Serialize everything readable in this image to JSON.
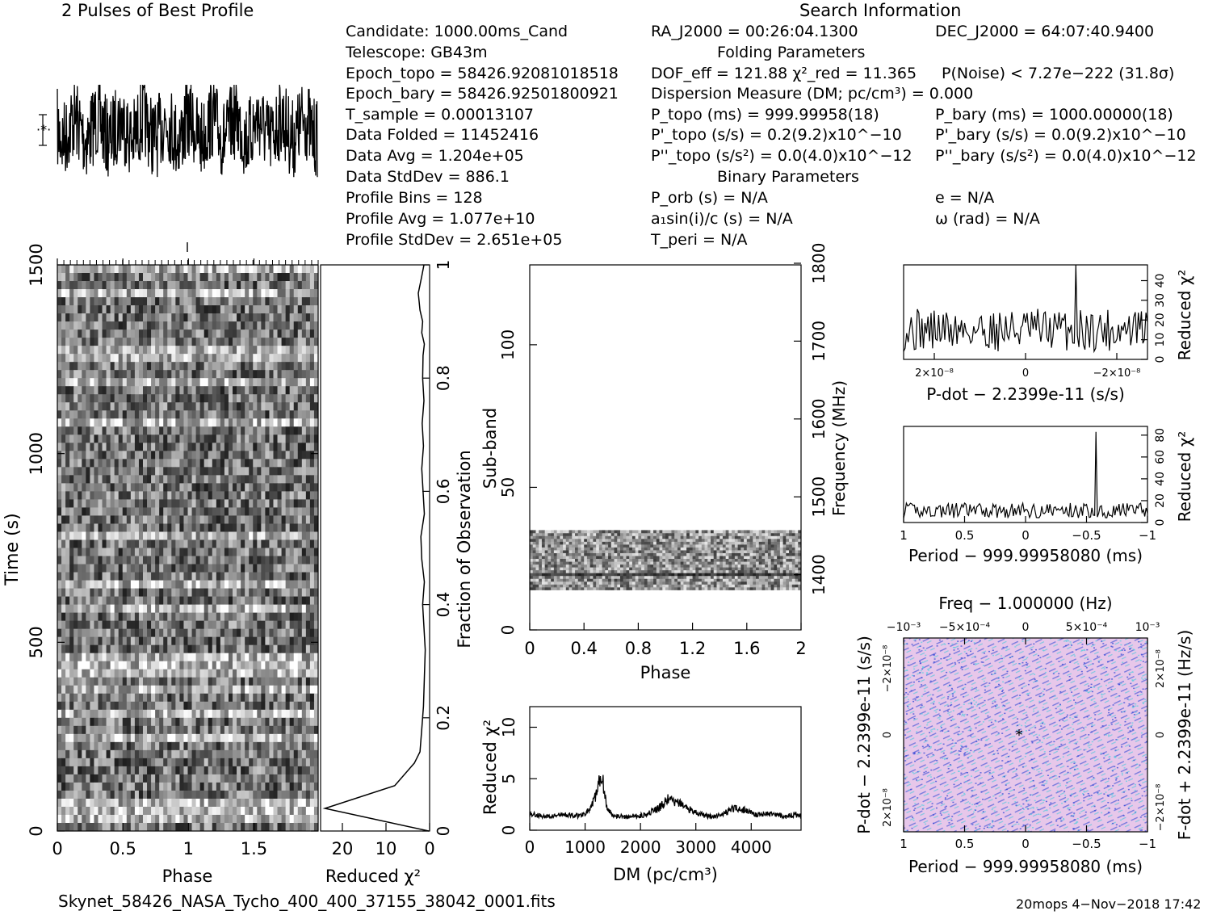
{
  "titles": {
    "profile_title": "2 Pulses of Best Profile",
    "search_info": "Search Information",
    "folding_params": "Folding Parameters",
    "binary_params": "Binary Parameters"
  },
  "info": {
    "candidate": "Candidate:   1000.00ms_Cand",
    "telescope": "Telescope:   GB43m",
    "epoch_topo": "Epoch_topo = 58426.92081018518",
    "epoch_bary": "Epoch_bary = 58426.92501800921",
    "t_sample": "T_sample        =   0.00013107",
    "data_folded": "Data Folded     =   11452416",
    "data_avg": "Data Avg        =   1.204e+05",
    "data_stddev": "Data StdDev     =   886.1",
    "profile_bins": "Profile Bins    =   128",
    "profile_avg": "Profile Avg     =   1.077e+10",
    "profile_stddev": "Profile StdDev  =   2.651e+05"
  },
  "search": {
    "ra": "RA_J2000 = 00:26:04.1300",
    "dec": "DEC_J2000 = 64:07:40.9400",
    "dof": "DOF_eff = 121.88  χ²_red = 11.365",
    "p_noise": "P(Noise) < 7.27e−222   (31.8σ)",
    "dm": "Dispersion Measure (DM; pc/cm³) = 0.000",
    "p_topo": "P_topo (ms) =  999.99958(18)",
    "p_bary": "P_bary (ms) =  1000.00000(18)",
    "pd_topo": "P'_topo (s/s) =  0.2(9.2)x10^−10",
    "pd_bary": "P'_bary (s/s) = 0.0(9.2)x10^−10",
    "pdd_topo": "P''_topo (s/s²) = 0.0(4.0)x10^−12",
    "pdd_bary": "P''_bary (s/s²) = 0.0(4.0)x10^−12",
    "p_orb": "P_orb (s) = N/A",
    "e": "e = N/A",
    "a1sini": "a₁sin(i)/c (s) = N/A",
    "omega": "ω (rad) = N/A",
    "t_peri": "T_peri = N/A"
  },
  "footer": {
    "filename": "Skynet_58426_NASA_Tycho_400_400_37155_38042_0001.fits",
    "stamp": "20mops  4−Nov−2018 17:42"
  },
  "colors": {
    "ink": "#000000",
    "pp_bg": "#e8c8ec",
    "pp_blue": "#2a3fd0",
    "pp_cyan": "#5fd0e0"
  },
  "chart_data": [
    {
      "id": "profile",
      "type": "line",
      "title": "2 Pulses of Best Profile",
      "x": "phase 0–2 (two pulses)",
      "note": "noise-like profile, no clear pulse"
    },
    {
      "id": "time_phase",
      "type": "heatmap",
      "xlabel": "Phase",
      "ylabel": "Time (s)",
      "xticks": [
        "0",
        "0.5",
        "1",
        "1.5"
      ],
      "yticks": [
        "0",
        "500",
        "1000",
        "1500"
      ],
      "xlim": [
        0,
        2
      ],
      "ylim": [
        0,
        1500
      ]
    },
    {
      "id": "time_chi2",
      "type": "line",
      "xlabel": "Reduced χ²",
      "ylabel": "Fraction of Observation",
      "xticks": [
        "20",
        "10",
        "0"
      ],
      "yticks": [
        "0",
        "0.2",
        "0.4",
        "0.6",
        "0.8",
        "1"
      ],
      "xlim": [
        25,
        0
      ],
      "ylim": [
        0,
        1
      ],
      "x": [
        0.2,
        24,
        8,
        3.5,
        2.2,
        1.8,
        1.4,
        1.2,
        1.0,
        1.3,
        1.6,
        1.2,
        1.8,
        2.0,
        1.2,
        1.5,
        1.8,
        1.4,
        1.7,
        1.3,
        1.6,
        1.5,
        1.2,
        1.8,
        1.6,
        2.2,
        2.6,
        1.8,
        1.3
      ],
      "y": [
        0.0,
        0.04,
        0.08,
        0.12,
        0.14,
        0.18,
        0.22,
        0.27,
        0.32,
        0.36,
        0.4,
        0.44,
        0.48,
        0.52,
        0.56,
        0.6,
        0.64,
        0.68,
        0.72,
        0.76,
        0.8,
        0.84,
        0.86,
        0.88,
        0.9,
        0.92,
        0.95,
        0.98,
        1.0
      ]
    },
    {
      "id": "subband_phase",
      "type": "heatmap",
      "xlabel": "Phase",
      "ylabel": "Sub-band",
      "y2label": "Frequency (MHz)",
      "xticks": [
        "0",
        "0.4",
        "0.8",
        "1.2",
        "1.6",
        "2"
      ],
      "yticks": [
        "0",
        "50",
        "100"
      ],
      "y2ticks": [
        "1400",
        "1500",
        "1600",
        "1700",
        "1800"
      ],
      "xlim": [
        0,
        2
      ],
      "ylim": [
        0,
        128
      ],
      "filled_subbands": [
        14,
        35
      ]
    },
    {
      "id": "dm_chi2",
      "type": "line",
      "xlabel": "DM (pc/cm³)",
      "ylabel": "Reduced χ²",
      "xticks": [
        "0",
        "1000",
        "2000",
        "3000",
        "4000"
      ],
      "yticks": [
        "0",
        "5",
        "10"
      ],
      "xlim": [
        0,
        4900
      ],
      "ylim": [
        0,
        12
      ],
      "x": [
        0,
        300,
        600,
        900,
        1100,
        1200,
        1300,
        1350,
        1400,
        1500,
        1700,
        2000,
        2300,
        2500,
        2700,
        2900,
        3100,
        3300,
        3500,
        3700,
        3900,
        4100,
        4300,
        4600,
        4900
      ],
      "values": [
        1.6,
        1.3,
        1.5,
        1.4,
        2.0,
        3.5,
        5.5,
        3.8,
        2.0,
        1.5,
        1.3,
        1.4,
        2.0,
        3.0,
        2.6,
        2.0,
        1.5,
        1.3,
        1.6,
        2.2,
        1.9,
        1.5,
        1.6,
        1.4,
        1.5
      ]
    },
    {
      "id": "pdot_chi2",
      "type": "line",
      "xlabel": "P-dot − 2.2399e-11 (s/s)",
      "ylabel": "Reduced χ²",
      "xticks": [
        "2×10⁻⁸",
        "0",
        "−2×10⁻⁸"
      ],
      "yticks": [
        "0",
        "10",
        "20",
        "30",
        "40"
      ],
      "ylim": [
        0,
        48
      ],
      "peak": 48
    },
    {
      "id": "period_chi2",
      "type": "line",
      "xlabel": "Period − 999.99958080 (ms)",
      "ylabel": "Reduced χ²",
      "xticks": [
        "1",
        "0.5",
        "0",
        "−0.5",
        "−1"
      ],
      "yticks": [
        "0",
        "20",
        "40",
        "60",
        "80"
      ],
      "xlim": [
        1,
        -1
      ],
      "ylim": [
        0,
        88
      ],
      "peak": {
        "x": -0.58,
        "y": 83
      }
    },
    {
      "id": "p_pdot",
      "type": "heatmap",
      "title": "Freq − 1.000000 (Hz)",
      "xlabel": "Period − 999.99958080 (ms)",
      "ylabel": "P-dot − 2.2399e-11 (s/s)",
      "y2label": "F-dot + 2.2399e-11 (Hz/s)",
      "xticks": [
        "1",
        "0.5",
        "0",
        "−0.5",
        "−1"
      ],
      "x2ticks": [
        "−10⁻³",
        "−5×10⁻⁴",
        "0",
        "5×10⁻⁴",
        "10⁻³"
      ],
      "yticks": [
        "−2×10⁻⁸",
        "0",
        "2×10⁻⁸"
      ],
      "y2ticks": [
        "2×10⁻⁸",
        "0",
        "−2×10⁻⁸"
      ]
    }
  ]
}
